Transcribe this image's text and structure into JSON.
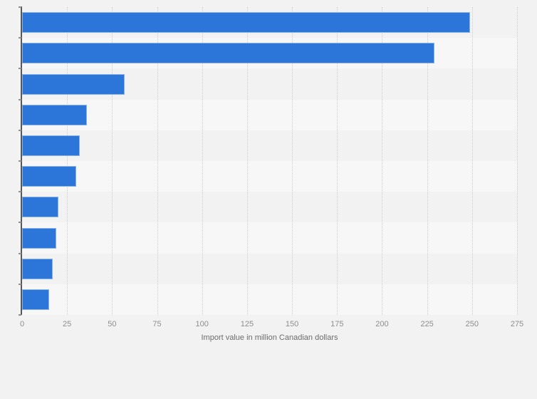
{
  "chart_data": {
    "type": "bar",
    "orientation": "horizontal",
    "title": "",
    "xlabel": "Import value in million Canadian dollars",
    "ylabel": "",
    "categories": [
      "",
      "",
      "",
      "",
      "",
      "",
      "",
      "",
      "",
      ""
    ],
    "values": [
      249,
      229,
      57,
      36,
      32,
      30,
      20,
      19,
      17,
      15
    ],
    "xlim": [
      0,
      275
    ],
    "xticks": [
      0,
      25,
      50,
      75,
      100,
      125,
      150,
      175,
      200,
      225,
      250,
      275
    ],
    "grid": "vertical dotted gridlines every 25 units",
    "legend": "none",
    "bar_color": "#2b76d8"
  },
  "colors": {
    "background": "#f2f2f2",
    "row_band_light": "#f7f7f7",
    "bar": "#2b76d8",
    "axis_line": "#56585a",
    "gridline": "#cdcdcd",
    "tick_label": "#8e8e8e",
    "axis_title": "#6c6c6c"
  }
}
